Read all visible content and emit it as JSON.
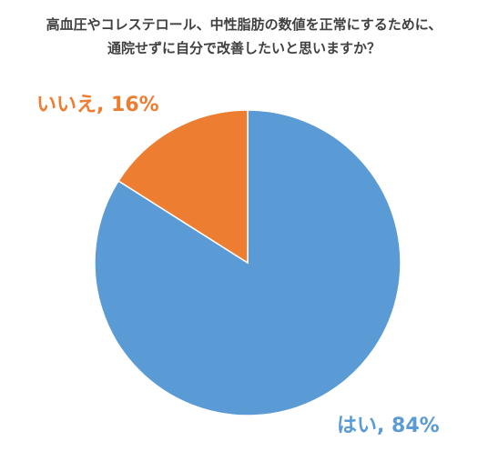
{
  "title": {
    "line1": "高血圧やコレステロール、中性脂肪の数値を正常にするために、",
    "line2": "通院せずに自分で改善したいと思いますか？"
  },
  "chart_data": {
    "type": "pie",
    "title": "高血圧やコレステロール、中性脂肪の数値を正常にするために、通院せずに自分で改善したいと思いますか？",
    "slices": [
      {
        "label": "はい",
        "value": 84,
        "display": "はい, 84%",
        "color": "#5B9BD5"
      },
      {
        "label": "いいえ",
        "value": 16,
        "display": "いいえ, 16%",
        "color": "#ED7D31"
      }
    ],
    "start_angle": "12 o'clock",
    "direction": "clockwise",
    "legend": "none"
  }
}
